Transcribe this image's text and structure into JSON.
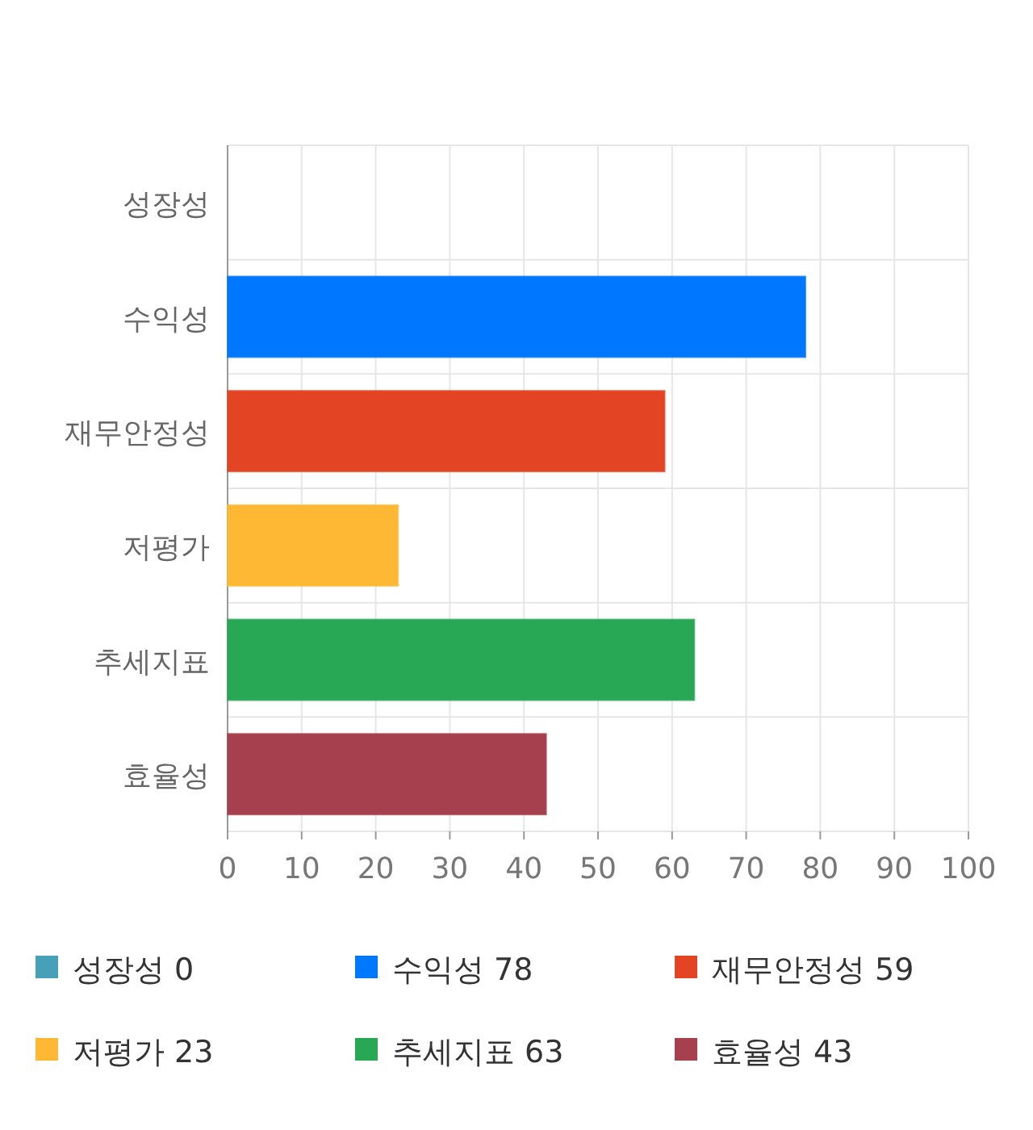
{
  "chart_data": {
    "type": "bar",
    "orientation": "horizontal",
    "stacked": true,
    "categories": [
      "성장성",
      "수익성",
      "재무안정성",
      "저평가",
      "추세지표",
      "효율성"
    ],
    "series": [
      {
        "name": "성장성 0",
        "color": "#46a0b8",
        "values": [
          0,
          null,
          null,
          null,
          null,
          null
        ]
      },
      {
        "name": "수익성 78",
        "color": "#0077ff",
        "values": [
          null,
          78,
          null,
          null,
          null,
          null
        ]
      },
      {
        "name": "재무안정성 59",
        "color": "#e34424",
        "values": [
          null,
          null,
          59,
          null,
          null,
          null
        ]
      },
      {
        "name": "저평가 23",
        "color": "#ffb833",
        "values": [
          null,
          null,
          null,
          23,
          null,
          null
        ]
      },
      {
        "name": "추세지표 63",
        "color": "#28a855",
        "values": [
          null,
          null,
          null,
          null,
          63,
          null
        ]
      },
      {
        "name": "효율성 43",
        "color": "#a6404f",
        "values": [
          null,
          null,
          null,
          null,
          null,
          43
        ]
      }
    ],
    "xlim": [
      0,
      100
    ],
    "xticks": [
      0,
      10,
      20,
      30,
      40,
      50,
      60,
      70,
      80,
      90,
      100
    ],
    "grid": true,
    "legend": "bottom"
  }
}
